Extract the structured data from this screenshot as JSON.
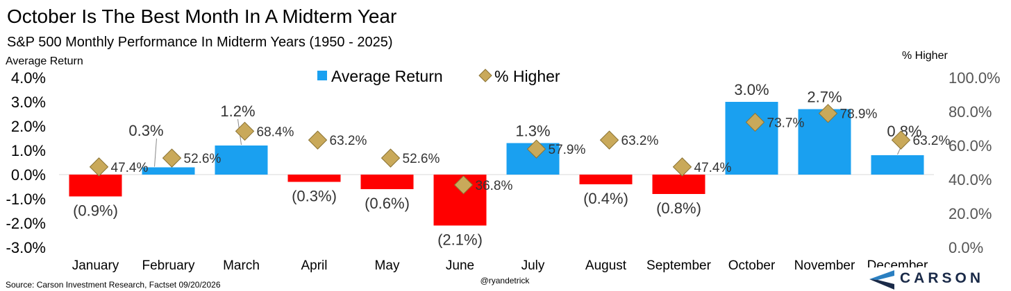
{
  "header": {
    "title": "October Is The Best Month In A Midterm Year",
    "subtitle": "S&P 500 Monthly Performance In Midterm Years (1950 - 2025)"
  },
  "footer": {
    "source": "Source: Carson Investment Research, Factset 09/20/2026",
    "credit": "@ryandetrick",
    "logo_text": "CARSON"
  },
  "colors": {
    "positive": "#1aa0f0",
    "negative": "#ff0000",
    "marker": "#c9a95a",
    "marker_stroke": "#8a7232",
    "axis_text": "#555555",
    "logo_blue": "#2a7fc1",
    "logo_navy": "#1a2a48"
  },
  "chart_data": {
    "type": "bar",
    "categories": [
      "January",
      "February",
      "March",
      "April",
      "May",
      "June",
      "July",
      "August",
      "September",
      "October",
      "November",
      "December"
    ],
    "legend_position": "top-center",
    "grid": false,
    "series": [
      {
        "name": "Average Return",
        "kind": "bar",
        "axis": "left",
        "values": [
          -0.9,
          0.3,
          1.2,
          -0.3,
          -0.6,
          -2.1,
          1.3,
          -0.4,
          -0.8,
          3.0,
          2.7,
          0.8
        ],
        "labels": [
          "(0.9%)",
          "0.3%",
          "1.2%",
          "(0.3%)",
          "(0.6%)",
          "(2.1%)",
          "1.3%",
          "(0.4%)",
          "(0.8%)",
          "3.0%",
          "2.7%",
          "0.8%"
        ]
      },
      {
        "name": "% Higher",
        "kind": "marker-diamond",
        "axis": "right",
        "values": [
          47.4,
          52.6,
          68.4,
          63.2,
          52.6,
          36.8,
          57.9,
          63.2,
          47.4,
          73.7,
          78.9,
          63.2
        ],
        "labels": [
          "47.4%",
          "52.6%",
          "68.4%",
          "63.2%",
          "52.6%",
          "36.8%",
          "57.9%",
          "63.2%",
          "47.4%",
          "73.7%",
          "78.9%",
          "63.2%"
        ]
      }
    ],
    "y_left": {
      "label": "Average Return",
      "range": [
        -3.0,
        4.0
      ],
      "ticks": [
        4.0,
        3.0,
        2.0,
        1.0,
        0.0,
        -1.0,
        -2.0,
        -3.0
      ],
      "tick_labels": [
        "4.0%",
        "3.0%",
        "2.0%",
        "1.0%",
        "0.0%",
        "-1.0%",
        "-2.0%",
        "-3.0%"
      ]
    },
    "y_right": {
      "label": "% Higher",
      "range": [
        0,
        100
      ],
      "ticks": [
        100,
        80,
        60,
        40,
        20,
        0
      ],
      "tick_labels": [
        "100.0%",
        "80.0%",
        "60.0%",
        "40.0%",
        "20.0%",
        "0.0%"
      ]
    }
  }
}
